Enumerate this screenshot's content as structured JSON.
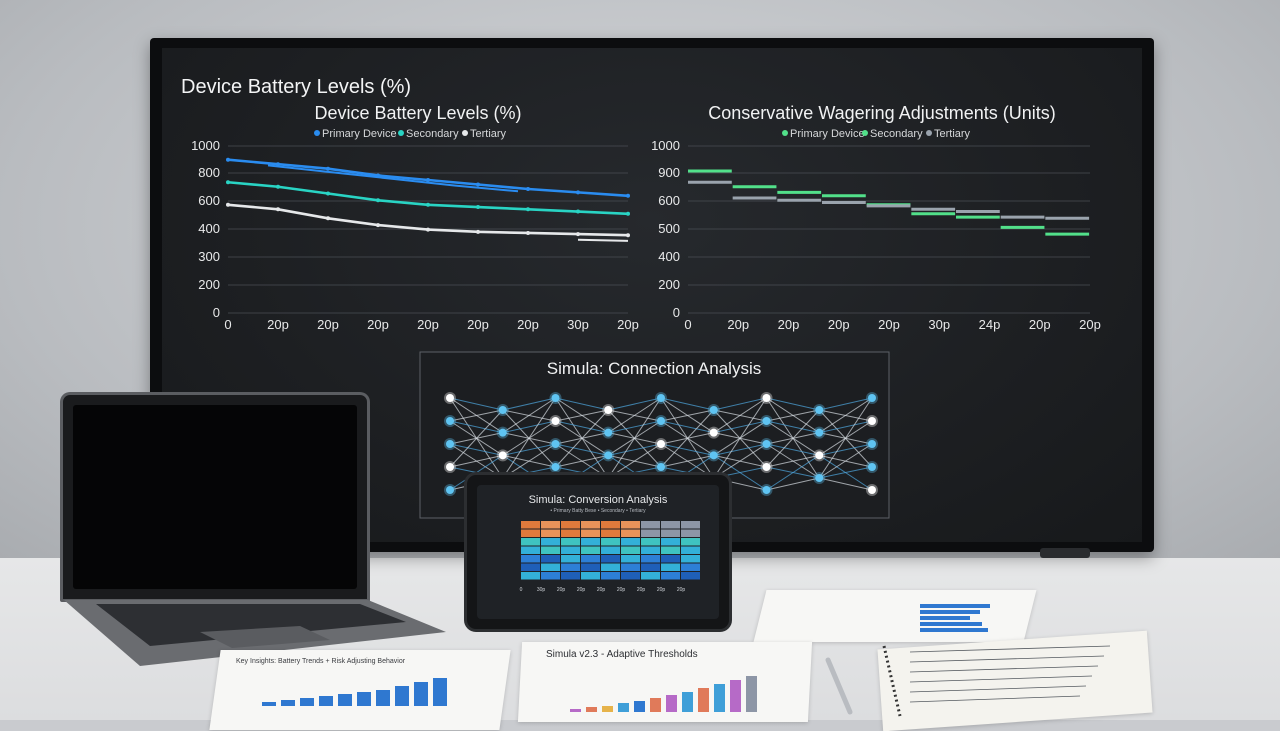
{
  "monitor": {
    "header_title": "Device Battery Levels (%)",
    "network_title": "Simula: Connection Analysis"
  },
  "colors": {
    "primary_blue": "#2a8cf0",
    "secondary_teal": "#29d4c4",
    "tertiary_white": "#e6e8ea",
    "primary_green": "#52e08a",
    "tertiary_gray": "#9aa3ad",
    "node_blue": "#5fc4f2",
    "node_white": "#ffffff"
  },
  "chart_data": [
    {
      "type": "line",
      "title": "Device Battery Levels (%)",
      "legend": [
        "Primary Device",
        "Secondary",
        "Tertiary"
      ],
      "legend_placement": "top",
      "y_ticks": [
        "1000",
        "800",
        "600",
        "400",
        "300",
        "200",
        "0"
      ],
      "x_ticks": [
        "0",
        "20p",
        "20p",
        "20p",
        "20p",
        "20p",
        "20p",
        "30p",
        "20p"
      ],
      "grid": true,
      "series": [
        {
          "name": "Primary Device",
          "color": "#2a8cf0",
          "values": [
            6.8,
            6.6,
            6.4,
            6.1,
            5.9,
            5.7,
            5.5,
            5.35,
            5.2
          ]
        },
        {
          "name": "Secondary",
          "color": "#29d4c4",
          "values": [
            5.8,
            5.6,
            5.3,
            5.0,
            4.8,
            4.7,
            4.6,
            4.5,
            4.4
          ]
        },
        {
          "name": "Tertiary",
          "color": "#e6e8ea",
          "values": [
            4.8,
            4.6,
            4.2,
            3.9,
            3.7,
            3.6,
            3.55,
            3.5,
            3.45
          ]
        }
      ],
      "extra_segments": [
        {
          "color": "#2a8cf0",
          "values": [
            6.55,
            6.25,
            5.95,
            5.65,
            5.4
          ]
        },
        {
          "color": "#e6e8ea",
          "values": [
            3.25,
            3.2
          ]
        }
      ]
    },
    {
      "type": "step",
      "title": "Conservative Wagering Adjustments (Units)",
      "legend": [
        "Primary Device",
        "Secondary",
        "Tertiary"
      ],
      "legend_placement": "top",
      "y_ticks": [
        "1000",
        "900",
        "600",
        "500",
        "400",
        "200",
        "0"
      ],
      "x_ticks": [
        "0",
        "20p",
        "20p",
        "20p",
        "20p",
        "30p",
        "24p",
        "20p",
        "20p"
      ],
      "grid": true,
      "series": [
        {
          "name": "Primary Device",
          "color": "#52e08a",
          "values": [
            6.3,
            5.6,
            5.35,
            5.2,
            4.8,
            4.4,
            4.25,
            3.8,
            3.5
          ]
        },
        {
          "name": "Tertiary",
          "color": "#9aa3ad",
          "values": [
            5.8,
            5.1,
            5.0,
            4.9,
            4.75,
            4.6,
            4.5,
            4.25,
            4.2
          ]
        }
      ]
    }
  ],
  "network": {
    "columns": [
      {
        "nodes": [
          0,
          1,
          2,
          3,
          4
        ]
      },
      {
        "nodes": [
          0,
          1,
          2,
          3
        ]
      },
      {
        "nodes": [
          0,
          1,
          2,
          3,
          4
        ]
      },
      {
        "nodes": [
          0,
          1,
          2,
          3
        ]
      },
      {
        "nodes": [
          0,
          1,
          2,
          3,
          4
        ]
      },
      {
        "nodes": [
          0,
          1,
          2,
          3
        ]
      },
      {
        "nodes": [
          0,
          1,
          2,
          3,
          4
        ]
      },
      {
        "nodes": [
          0,
          1,
          2,
          3
        ]
      },
      {
        "nodes": [
          0,
          1,
          2,
          3,
          4
        ]
      }
    ]
  },
  "tablet": {
    "title": "Simula: Conversion Analysis",
    "legend": "• Primary Batty Bese  • Secondary  • Tertiary",
    "x_ticks": [
      "0",
      "30p",
      "20p",
      "20p",
      "20p",
      "20p",
      "20p",
      "20p",
      "20p"
    ]
  },
  "papers": {
    "paper_center_title": "Simula v2.3 - Adaptive Thresholds",
    "paper_left_title": "Key Insights: Battery Trends + Risk Adjusting Behavior"
  }
}
